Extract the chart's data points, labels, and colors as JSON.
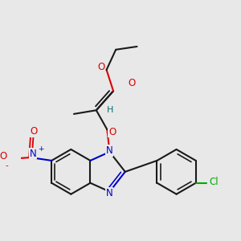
{
  "bg_color": "#e8e8e8",
  "bond_color": "#1a1a1a",
  "N_color": "#0000cc",
  "O_color": "#dd0000",
  "Cl_color": "#00aa00",
  "H_color": "#007070",
  "figsize": [
    3.0,
    3.0
  ],
  "dpi": 100,
  "xlim": [
    -2.5,
    4.5
  ],
  "ylim": [
    -3.0,
    3.5
  ]
}
